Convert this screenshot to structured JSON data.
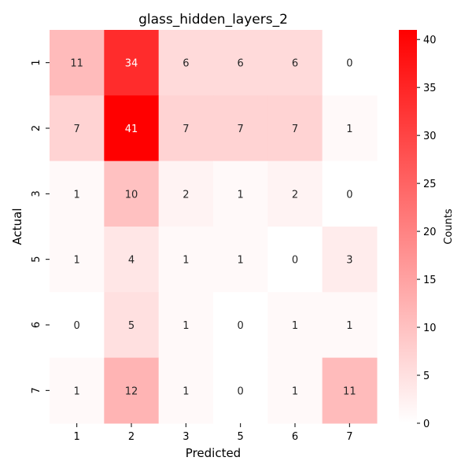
{
  "chart_data": {
    "type": "heatmap",
    "title": "glass_hidden_layers_2",
    "xlabel": "Predicted",
    "ylabel": "Actual",
    "x_categories": [
      "1",
      "2",
      "3",
      "5",
      "6",
      "7"
    ],
    "y_categories": [
      "1",
      "2",
      "3",
      "5",
      "6",
      "7"
    ],
    "values": [
      [
        11,
        34,
        6,
        6,
        6,
        0
      ],
      [
        7,
        41,
        7,
        7,
        7,
        1
      ],
      [
        1,
        10,
        2,
        1,
        2,
        0
      ],
      [
        1,
        4,
        1,
        1,
        0,
        3
      ],
      [
        0,
        5,
        1,
        0,
        1,
        1
      ],
      [
        1,
        12,
        1,
        0,
        1,
        11
      ]
    ],
    "colorbar": {
      "label": "Counts",
      "range": [
        0,
        41
      ],
      "ticks": [
        0,
        5,
        10,
        15,
        20,
        25,
        30,
        35,
        40
      ],
      "color_min": "#ffffff",
      "color_max": "#ff0000"
    }
  }
}
